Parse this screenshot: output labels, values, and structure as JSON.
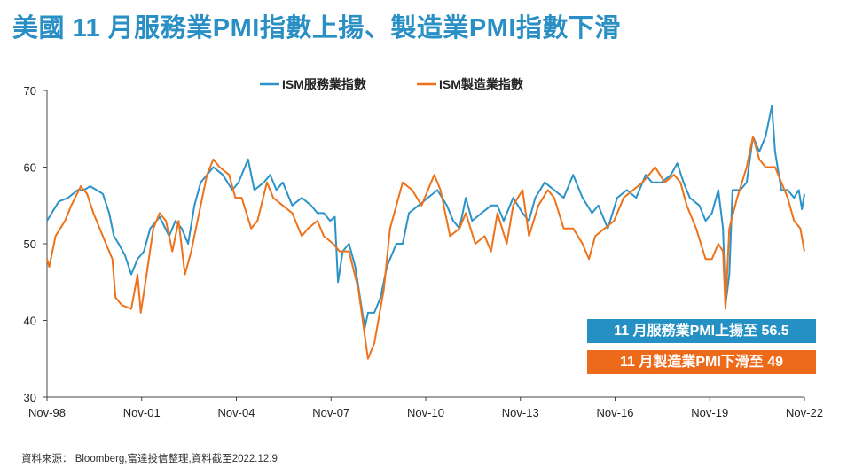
{
  "title": "美國 11 月服務業PMI指數上揚、製造業PMI指數下滑",
  "footer": "資料來源： Bloomberg,富達投信整理,資料截至2022.12.9",
  "annotations": [
    "11 月服務業PMI上揚至 56.5",
    "11 月製造業PMI下滑至 49"
  ],
  "chart_data": {
    "type": "line",
    "title": "",
    "xlabel": "",
    "ylabel": "",
    "ylim": [
      30,
      70
    ],
    "yticks": [
      30,
      40,
      50,
      60,
      70
    ],
    "xlim": [
      1998.83,
      2022.83
    ],
    "xticks": [
      {
        "x": 1998.83,
        "label": "Nov-98"
      },
      {
        "x": 2001.83,
        "label": "Nov-01"
      },
      {
        "x": 2004.83,
        "label": "Nov-04"
      },
      {
        "x": 2007.83,
        "label": "Nov-07"
      },
      {
        "x": 2010.83,
        "label": "Nov-10"
      },
      {
        "x": 2013.83,
        "label": "Nov-13"
      },
      {
        "x": 2016.83,
        "label": "Nov-16"
      },
      {
        "x": 2019.83,
        "label": "Nov-19"
      },
      {
        "x": 2022.83,
        "label": "Nov-22"
      }
    ],
    "legend_position": "top-center",
    "series": [
      {
        "name": "ISM服務業指數",
        "color": "#2b93c7",
        "points": [
          [
            1998.83,
            53
          ],
          [
            1999.2,
            55.5
          ],
          [
            1999.5,
            56
          ],
          [
            1999.8,
            57
          ],
          [
            2000.0,
            57
          ],
          [
            2000.2,
            57.5
          ],
          [
            2000.4,
            57
          ],
          [
            2000.6,
            56.5
          ],
          [
            2000.8,
            54
          ],
          [
            2000.95,
            51
          ],
          [
            2001.1,
            50
          ],
          [
            2001.3,
            48.5
          ],
          [
            2001.5,
            46
          ],
          [
            2001.7,
            48
          ],
          [
            2001.9,
            49
          ],
          [
            2002.1,
            52
          ],
          [
            2002.4,
            53.5
          ],
          [
            2002.7,
            51
          ],
          [
            2002.9,
            53
          ],
          [
            2003.1,
            52
          ],
          [
            2003.3,
            50
          ],
          [
            2003.5,
            55
          ],
          [
            2003.7,
            58
          ],
          [
            2003.9,
            59
          ],
          [
            2004.1,
            60
          ],
          [
            2004.4,
            59
          ],
          [
            2004.7,
            57
          ],
          [
            2004.9,
            58
          ],
          [
            2005.1,
            60
          ],
          [
            2005.2,
            61
          ],
          [
            2005.4,
            57
          ],
          [
            2005.7,
            58
          ],
          [
            2005.9,
            59
          ],
          [
            2006.1,
            57
          ],
          [
            2006.3,
            58
          ],
          [
            2006.6,
            55
          ],
          [
            2006.9,
            56
          ],
          [
            2007.2,
            55
          ],
          [
            2007.4,
            54
          ],
          [
            2007.6,
            54
          ],
          [
            2007.8,
            53
          ],
          [
            2007.95,
            53.5
          ],
          [
            2008.05,
            45
          ],
          [
            2008.2,
            49
          ],
          [
            2008.4,
            50
          ],
          [
            2008.6,
            47
          ],
          [
            2008.9,
            39
          ],
          [
            2009.0,
            41
          ],
          [
            2009.2,
            41
          ],
          [
            2009.4,
            43
          ],
          [
            2009.6,
            47
          ],
          [
            2009.9,
            50
          ],
          [
            2010.1,
            50
          ],
          [
            2010.3,
            54
          ],
          [
            2010.6,
            55
          ],
          [
            2010.9,
            56
          ],
          [
            2011.2,
            57
          ],
          [
            2011.5,
            55
          ],
          [
            2011.7,
            53
          ],
          [
            2011.9,
            52
          ],
          [
            2012.1,
            56
          ],
          [
            2012.3,
            53
          ],
          [
            2012.6,
            54
          ],
          [
            2012.9,
            55
          ],
          [
            2013.1,
            55
          ],
          [
            2013.3,
            53
          ],
          [
            2013.6,
            56
          ],
          [
            2013.9,
            54
          ],
          [
            2014.1,
            53
          ],
          [
            2014.3,
            56
          ],
          [
            2014.6,
            58
          ],
          [
            2014.9,
            57
          ],
          [
            2015.2,
            56
          ],
          [
            2015.5,
            59
          ],
          [
            2015.8,
            56
          ],
          [
            2016.1,
            54
          ],
          [
            2016.3,
            55
          ],
          [
            2016.6,
            52
          ],
          [
            2016.9,
            56
          ],
          [
            2017.2,
            57
          ],
          [
            2017.5,
            56
          ],
          [
            2017.8,
            59
          ],
          [
            2018.0,
            58
          ],
          [
            2018.3,
            58
          ],
          [
            2018.6,
            59
          ],
          [
            2018.8,
            60.5
          ],
          [
            2019.0,
            58
          ],
          [
            2019.2,
            56
          ],
          [
            2019.5,
            55
          ],
          [
            2019.7,
            53
          ],
          [
            2019.9,
            54
          ],
          [
            2020.1,
            57
          ],
          [
            2020.25,
            52
          ],
          [
            2020.33,
            42
          ],
          [
            2020.45,
            46
          ],
          [
            2020.55,
            57
          ],
          [
            2020.8,
            57
          ],
          [
            2021.0,
            58
          ],
          [
            2021.2,
            64
          ],
          [
            2021.4,
            62
          ],
          [
            2021.6,
            64
          ],
          [
            2021.8,
            68
          ],
          [
            2021.9,
            62
          ],
          [
            2022.1,
            57
          ],
          [
            2022.3,
            57
          ],
          [
            2022.5,
            56
          ],
          [
            2022.65,
            57
          ],
          [
            2022.75,
            54.5
          ],
          [
            2022.83,
            56.5
          ]
        ]
      },
      {
        "name": "ISM製造業指數",
        "color": "#ee7219",
        "points": [
          [
            1998.83,
            48
          ],
          [
            1998.9,
            47
          ],
          [
            1999.1,
            51
          ],
          [
            1999.4,
            53
          ],
          [
            1999.6,
            55
          ],
          [
            1999.9,
            57.5
          ],
          [
            2000.1,
            56.5
          ],
          [
            2000.3,
            54
          ],
          [
            2000.5,
            52
          ],
          [
            2000.7,
            50
          ],
          [
            2000.9,
            48
          ],
          [
            2001.0,
            43
          ],
          [
            2001.2,
            42
          ],
          [
            2001.5,
            41.5
          ],
          [
            2001.7,
            46
          ],
          [
            2001.8,
            41
          ],
          [
            2001.95,
            45
          ],
          [
            2002.2,
            52
          ],
          [
            2002.4,
            54
          ],
          [
            2002.6,
            53
          ],
          [
            2002.8,
            49
          ],
          [
            2003.0,
            53
          ],
          [
            2003.2,
            46
          ],
          [
            2003.4,
            49
          ],
          [
            2003.6,
            53
          ],
          [
            2003.9,
            59
          ],
          [
            2004.1,
            61
          ],
          [
            2004.3,
            60
          ],
          [
            2004.6,
            59
          ],
          [
            2004.8,
            56
          ],
          [
            2005.0,
            56
          ],
          [
            2005.3,
            52
          ],
          [
            2005.5,
            53
          ],
          [
            2005.8,
            58
          ],
          [
            2006.0,
            56
          ],
          [
            2006.3,
            55
          ],
          [
            2006.6,
            54
          ],
          [
            2006.9,
            51
          ],
          [
            2007.1,
            52
          ],
          [
            2007.4,
            53
          ],
          [
            2007.6,
            51
          ],
          [
            2007.9,
            50
          ],
          [
            2008.1,
            49
          ],
          [
            2008.4,
            49
          ],
          [
            2008.7,
            44
          ],
          [
            2008.9,
            38
          ],
          [
            2009.0,
            35
          ],
          [
            2009.2,
            37
          ],
          [
            2009.5,
            44
          ],
          [
            2009.7,
            52
          ],
          [
            2009.9,
            55
          ],
          [
            2010.1,
            58
          ],
          [
            2010.4,
            57
          ],
          [
            2010.7,
            55
          ],
          [
            2010.9,
            57
          ],
          [
            2011.1,
            59
          ],
          [
            2011.3,
            57
          ],
          [
            2011.6,
            51
          ],
          [
            2011.9,
            52
          ],
          [
            2012.1,
            54
          ],
          [
            2012.4,
            50
          ],
          [
            2012.7,
            51
          ],
          [
            2012.9,
            49
          ],
          [
            2013.1,
            54
          ],
          [
            2013.4,
            50
          ],
          [
            2013.6,
            55
          ],
          [
            2013.9,
            57
          ],
          [
            2014.1,
            51
          ],
          [
            2014.4,
            55
          ],
          [
            2014.7,
            57
          ],
          [
            2014.9,
            56
          ],
          [
            2015.2,
            52
          ],
          [
            2015.5,
            52
          ],
          [
            2015.8,
            50
          ],
          [
            2016.0,
            48
          ],
          [
            2016.2,
            51
          ],
          [
            2016.5,
            52
          ],
          [
            2016.8,
            53
          ],
          [
            2017.1,
            56
          ],
          [
            2017.4,
            57
          ],
          [
            2017.7,
            58
          ],
          [
            2017.9,
            59
          ],
          [
            2018.1,
            60
          ],
          [
            2018.4,
            58
          ],
          [
            2018.7,
            59
          ],
          [
            2018.9,
            58
          ],
          [
            2019.1,
            55
          ],
          [
            2019.4,
            52
          ],
          [
            2019.7,
            48
          ],
          [
            2019.9,
            48
          ],
          [
            2020.1,
            50
          ],
          [
            2020.25,
            49
          ],
          [
            2020.33,
            41.5
          ],
          [
            2020.45,
            52
          ],
          [
            2020.7,
            56
          ],
          [
            2021.0,
            60
          ],
          [
            2021.2,
            64
          ],
          [
            2021.4,
            61
          ],
          [
            2021.6,
            60
          ],
          [
            2021.9,
            60
          ],
          [
            2022.1,
            58
          ],
          [
            2022.3,
            56
          ],
          [
            2022.5,
            53
          ],
          [
            2022.7,
            52
          ],
          [
            2022.83,
            49
          ]
        ]
      }
    ]
  }
}
